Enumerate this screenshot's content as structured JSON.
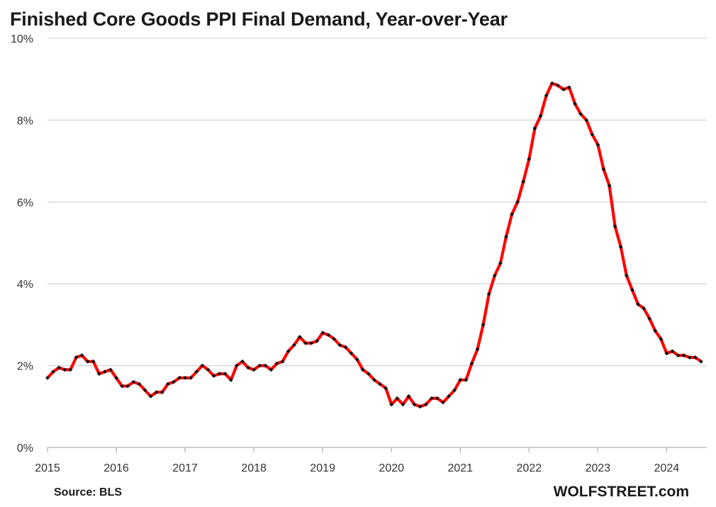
{
  "chart_data": {
    "type": "line",
    "title": "Finished Core Goods PPI Final Demand, Year-over-Year",
    "xlabel": "",
    "ylabel": "",
    "ylim": [
      0,
      10
    ],
    "y_ticks": [
      "0%",
      "2%",
      "4%",
      "6%",
      "8%",
      "10%"
    ],
    "y_tick_values": [
      0,
      2,
      4,
      6,
      8,
      10
    ],
    "x_ticks": [
      "2015",
      "2016",
      "2017",
      "2018",
      "2019",
      "2020",
      "2021",
      "2022",
      "2023",
      "2024"
    ],
    "x_tick_values": [
      2015,
      2016,
      2017,
      2018,
      2019,
      2020,
      2021,
      2022,
      2023,
      2024
    ],
    "xlim": [
      2015,
      2024.583
    ],
    "grid": true,
    "series": [
      {
        "name": "Finished Core Goods PPI YoY",
        "color": "#ff0000",
        "marker_color": "#111111",
        "start": "2015-01",
        "frequency": "monthly",
        "values": [
          1.7,
          1.85,
          1.95,
          1.9,
          1.9,
          2.2,
          2.25,
          2.1,
          2.1,
          1.8,
          1.85,
          1.9,
          1.7,
          1.5,
          1.5,
          1.6,
          1.55,
          1.4,
          1.25,
          1.35,
          1.35,
          1.55,
          1.6,
          1.7,
          1.7,
          1.7,
          1.85,
          2.0,
          1.9,
          1.75,
          1.8,
          1.8,
          1.65,
          2.0,
          2.1,
          1.95,
          1.9,
          2.0,
          2.0,
          1.9,
          2.05,
          2.1,
          2.35,
          2.5,
          2.7,
          2.55,
          2.55,
          2.6,
          2.8,
          2.75,
          2.65,
          2.5,
          2.45,
          2.3,
          2.15,
          1.9,
          1.8,
          1.65,
          1.55,
          1.45,
          1.05,
          1.2,
          1.05,
          1.25,
          1.05,
          1.0,
          1.05,
          1.2,
          1.2,
          1.1,
          1.25,
          1.4,
          1.65,
          1.65,
          2.05,
          2.4,
          3.0,
          3.75,
          4.2,
          4.5,
          5.15,
          5.7,
          6.0,
          6.5,
          7.05,
          7.8,
          8.1,
          8.6,
          8.9,
          8.85,
          8.75,
          8.8,
          8.4,
          8.15,
          8.0,
          7.65,
          7.4,
          6.8,
          6.4,
          5.4,
          4.9,
          4.2,
          3.85,
          3.5,
          3.4,
          3.15,
          2.85,
          2.65,
          2.3,
          2.35,
          2.25,
          2.25,
          2.2,
          2.2,
          2.1
        ]
      }
    ]
  },
  "footer": {
    "source": "Source: BLS",
    "brand": "WOLFSTREET.com"
  }
}
